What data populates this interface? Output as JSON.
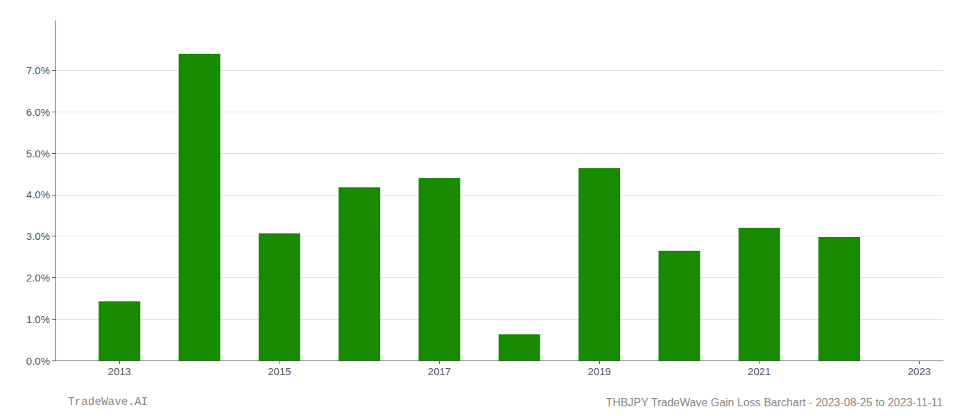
{
  "chart_data": {
    "type": "bar",
    "x": [
      2013,
      2014,
      2015,
      2016,
      2017,
      2018,
      2019,
      2020,
      2021,
      2022
    ],
    "values": [
      0.0143,
      0.074,
      0.0307,
      0.0418,
      0.044,
      0.0063,
      0.0465,
      0.0265,
      0.032,
      0.0298
    ],
    "color": "#178a00",
    "xlim": [
      2012.2,
      2023.3
    ],
    "xticks": [
      2013,
      2015,
      2017,
      2019,
      2021,
      2023
    ],
    "ylim": [
      0.0,
      0.082
    ],
    "yticks": [
      {
        "value": 0.0,
        "label": "0.0%"
      },
      {
        "value": 0.01,
        "label": "1.0%"
      },
      {
        "value": 0.02,
        "label": "2.0%"
      },
      {
        "value": 0.03,
        "label": "3.0%"
      },
      {
        "value": 0.04,
        "label": "4.0%"
      },
      {
        "value": 0.05,
        "label": "5.0%"
      },
      {
        "value": 0.06,
        "label": "6.0%"
      },
      {
        "value": 0.07,
        "label": "7.0%"
      }
    ],
    "grid": true,
    "annotations": [
      "TradeWave.AI",
      "THBJPY TradeWave Gain Loss Barchart - 2023-08-25 to 2023-11-11"
    ]
  }
}
